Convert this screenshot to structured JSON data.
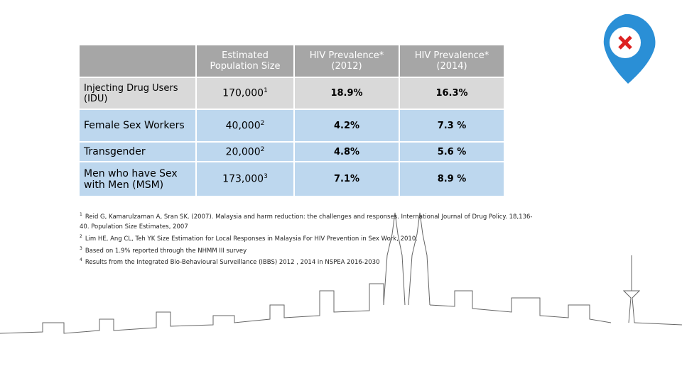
{
  "table": {
    "header": [
      "Estimated Population Size",
      "HIV Prevalence* (2012)",
      "HIV Prevalence* (2014)"
    ],
    "rows": [
      {
        "label": "Injecting Drug Users (IDU)",
        "population": "170,000",
        "note": "1",
        "prev2012": "18.9%",
        "prev2014": "16.3%"
      },
      {
        "label": "Female Sex Workers",
        "population": "40,000",
        "note": "2",
        "prev2012": "4.2%",
        "prev2014": "7.3 %"
      },
      {
        "label": "Transgender",
        "population": "20,000",
        "note": "2",
        "prev2012": "4.8%",
        "prev2014": "5.6 %"
      },
      {
        "label": "Men who have Sex with Men (MSM)",
        "population": "173,000",
        "note": "3",
        "prev2012": "7.1%",
        "prev2014": "8.9 %"
      }
    ]
  },
  "footnotes": [
    {
      "mark": "1",
      "text": "Reid G, Kamarulzaman A, Sran SK. (2007). Malaysia and harm reduction: the challenges and responses. International Journal of Drug Policy. 18,136-40. Population Size Estimates, 2007"
    },
    {
      "mark": "2",
      "text": "Lim HE, Ang CL, Teh YK Size Estimation for Local Responses in Malaysia For HIV Prevention in Sex Work, 2010."
    },
    {
      "mark": "3",
      "text": "Based on 1.9% reported through the NHMM III survey"
    },
    {
      "mark": "4",
      "text": "Results from the Integrated Bio-Behavioural Surveillance (IBBS) 2012 , 2014 in NSPEA 2016-2030"
    }
  ]
}
